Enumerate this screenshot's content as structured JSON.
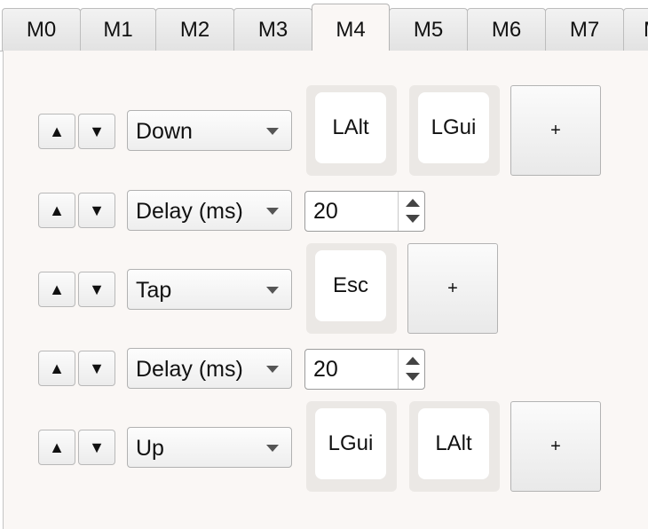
{
  "tabs": [
    {
      "label": "M0"
    },
    {
      "label": "M1"
    },
    {
      "label": "M2"
    },
    {
      "label": "M3"
    },
    {
      "label": "M4"
    },
    {
      "label": "M5"
    },
    {
      "label": "M6"
    },
    {
      "label": "M7"
    },
    {
      "label": "M"
    }
  ],
  "active_tab": "M4",
  "icons": {
    "up_arrow": "▲",
    "down_arrow": "▼",
    "add": "+"
  },
  "rows": [
    {
      "action": "Down",
      "keys": [
        "LAlt",
        "LGui"
      ],
      "add_label": "+"
    },
    {
      "action": "Delay (ms)",
      "value": "20"
    },
    {
      "action": "Tap",
      "keys": [
        "Esc"
      ],
      "add_label": "+"
    },
    {
      "action": "Delay (ms)",
      "value": "20"
    },
    {
      "action": "Up",
      "keys": [
        "LGui",
        "LAlt"
      ],
      "add_label": "+"
    }
  ]
}
